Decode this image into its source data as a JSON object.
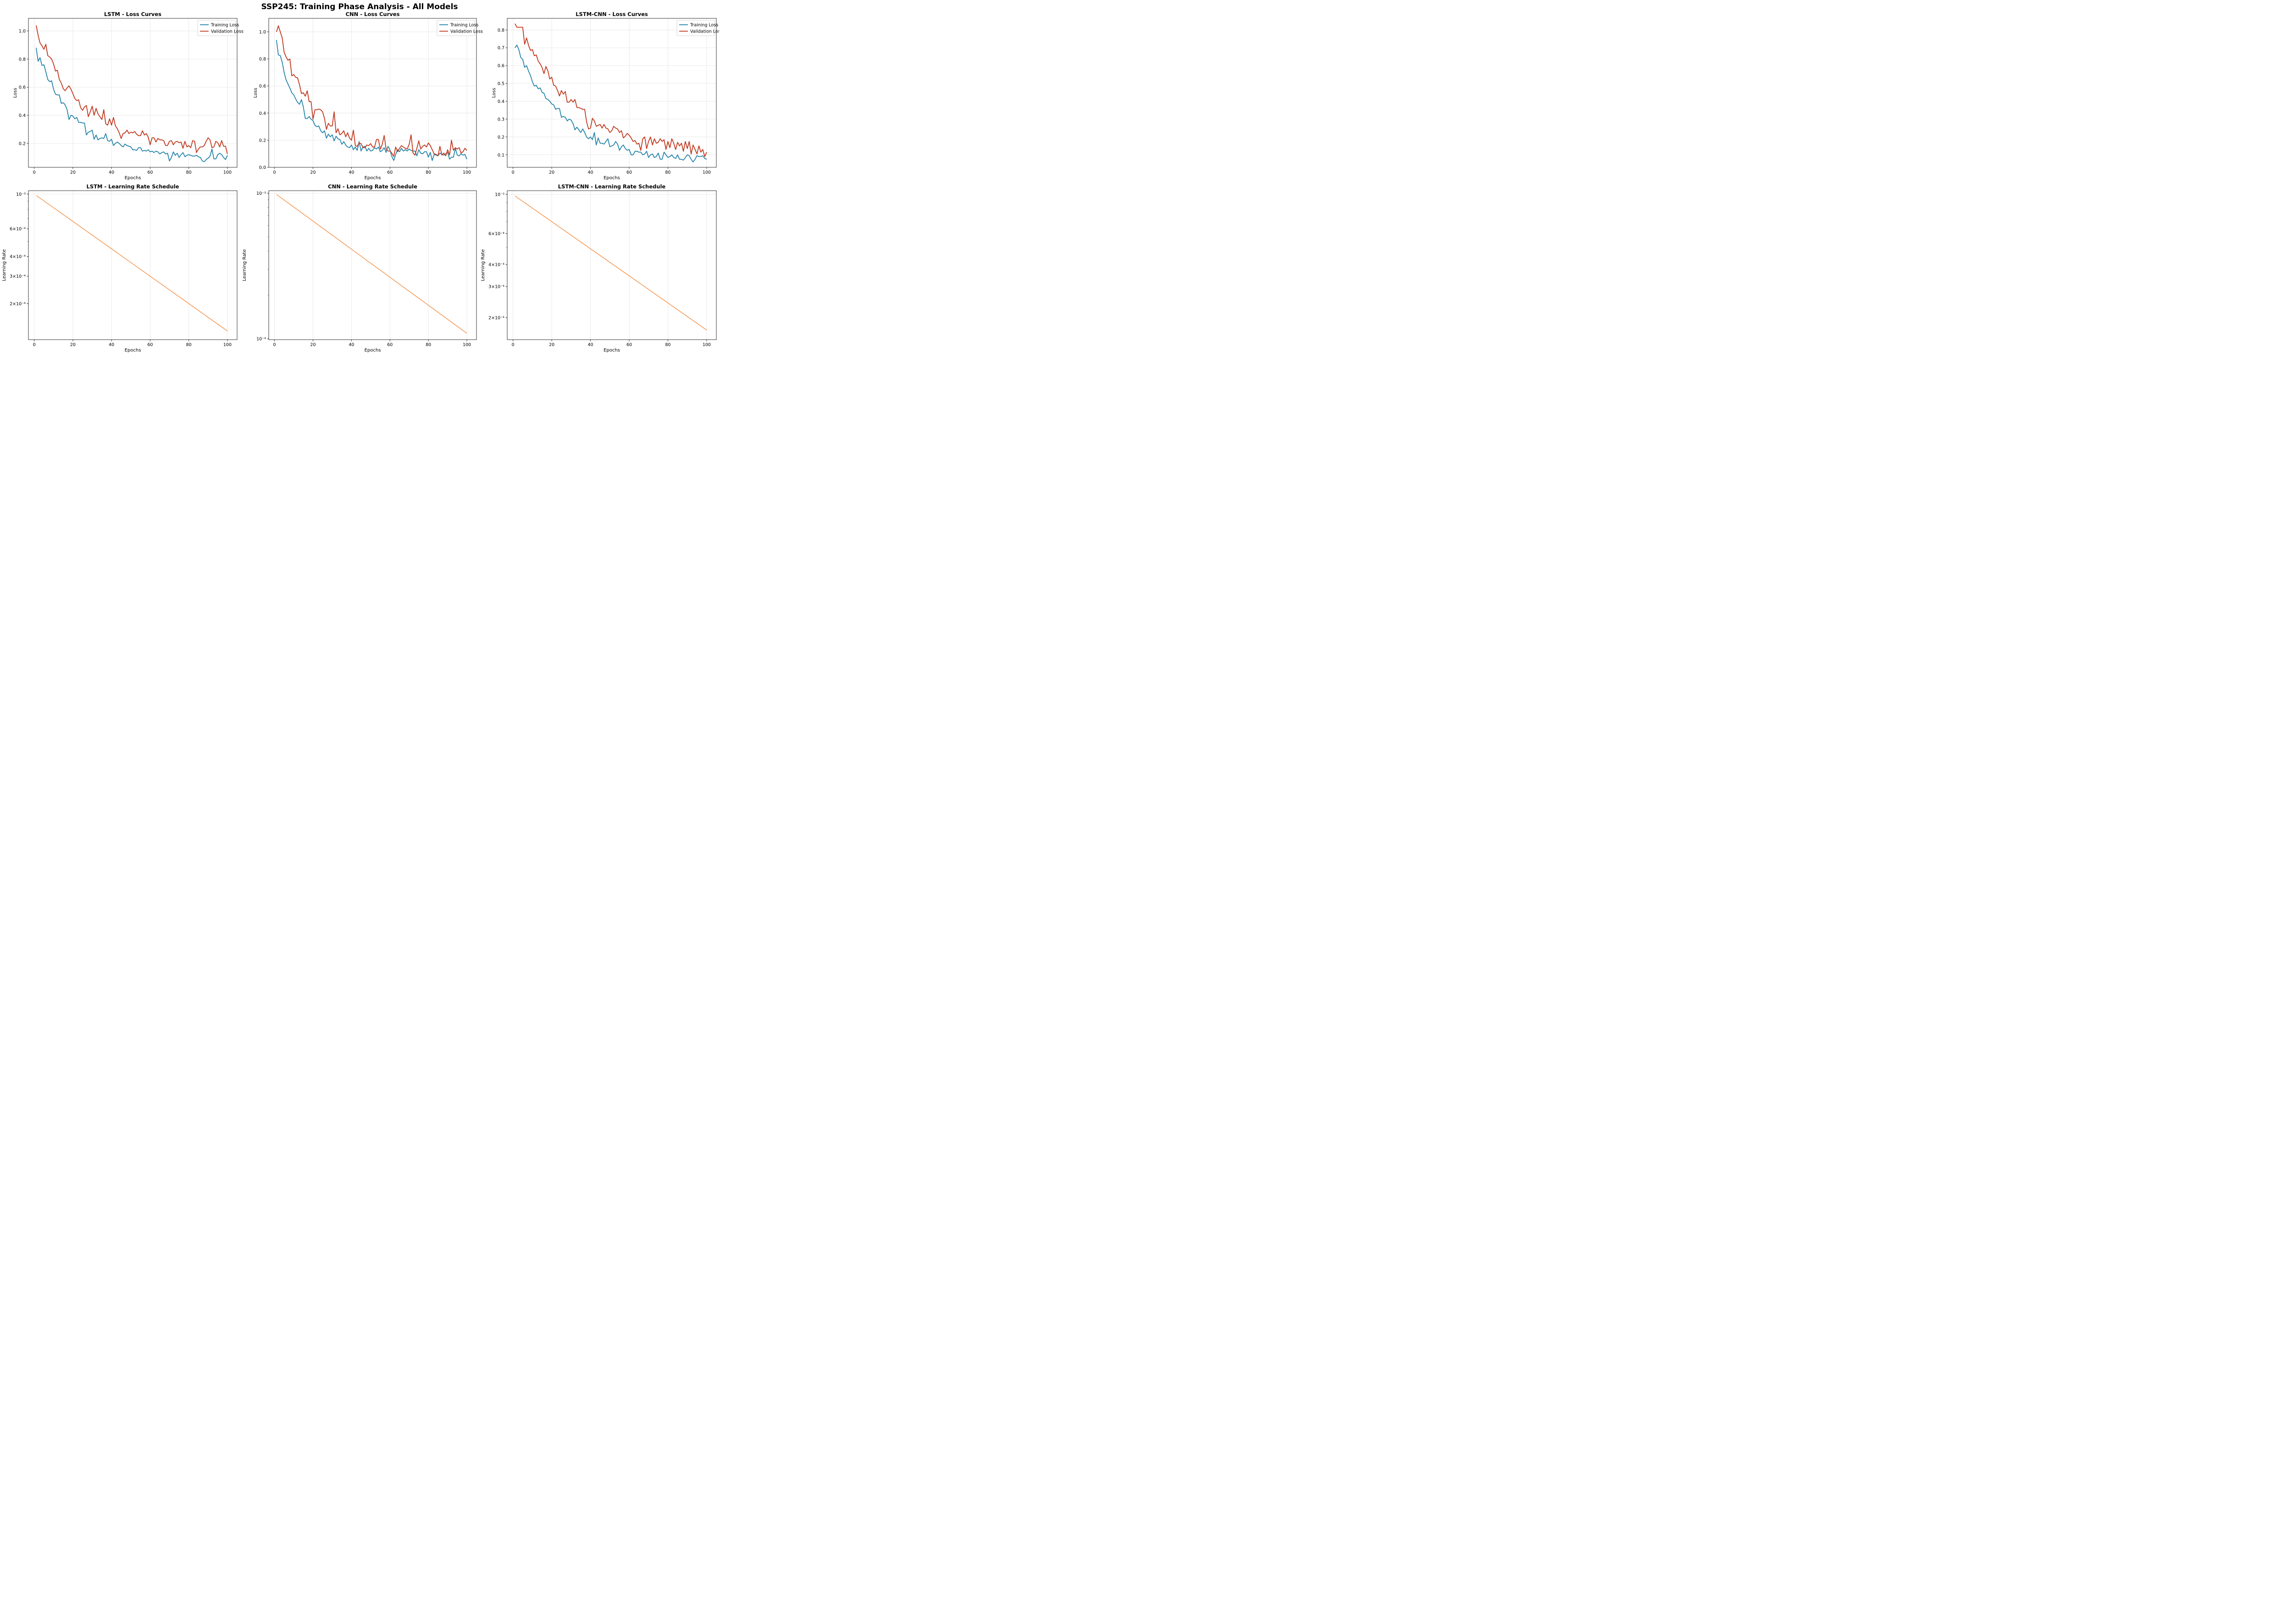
{
  "title": "SSP245: Training Phase Analysis - All Models",
  "colors": {
    "training": "#2383a8",
    "validation": "#c0371c",
    "learning_rate": "#f5964f"
  },
  "chart_data": [
    {
      "type": "line",
      "title": "LSTM - Loss Curves",
      "xlabel": "Epochs",
      "ylabel": "Loss",
      "xlim": [
        -3,
        105
      ],
      "ylim": [
        0.03,
        1.09
      ],
      "xticks": [
        0,
        20,
        40,
        60,
        80,
        100
      ],
      "yticks": [
        0.2,
        0.4,
        0.6,
        0.8,
        1.0
      ],
      "ytick_labels": [
        "0.2",
        "0.4",
        "0.6",
        "0.8",
        "1.0"
      ],
      "grid": true,
      "legend": "top-right",
      "x_start": 1,
      "x_step": 1,
      "series": [
        {
          "name": "Training Loss",
          "color_key": "training",
          "values": [
            0.88,
            0.785,
            0.81,
            0.755,
            0.76,
            0.71,
            0.655,
            0.64,
            0.645,
            0.585,
            0.55,
            0.545,
            0.545,
            0.485,
            0.49,
            0.475,
            0.44,
            0.37,
            0.4,
            0.395,
            0.375,
            0.385,
            0.35,
            0.35,
            0.345,
            0.345,
            0.26,
            0.28,
            0.285,
            0.295,
            0.23,
            0.26,
            0.225,
            0.235,
            0.24,
            0.235,
            0.27,
            0.22,
            0.215,
            0.23,
            0.185,
            0.2,
            0.21,
            0.2,
            0.185,
            0.175,
            0.195,
            0.185,
            0.18,
            0.175,
            0.155,
            0.155,
            0.15,
            0.17,
            0.17,
            0.145,
            0.15,
            0.145,
            0.155,
            0.14,
            0.145,
            0.135,
            0.145,
            0.14,
            0.125,
            0.135,
            0.14,
            0.125,
            0.13,
            0.075,
            0.1,
            0.14,
            0.115,
            0.13,
            0.1,
            0.12,
            0.135,
            0.105,
            0.115,
            0.12,
            0.115,
            0.11,
            0.11,
            0.115,
            0.105,
            0.1,
            0.075,
            0.07,
            0.085,
            0.095,
            0.11,
            0.16,
            0.09,
            0.09,
            0.12,
            0.13,
            0.12,
            0.1,
            0.085,
            0.115
          ]
        },
        {
          "name": "Validation Loss",
          "color_key": "validation",
          "values": [
            1.04,
            0.97,
            0.915,
            0.895,
            0.87,
            0.905,
            0.825,
            0.815,
            0.8,
            0.765,
            0.715,
            0.72,
            0.655,
            0.63,
            0.59,
            0.575,
            0.595,
            0.61,
            0.585,
            0.555,
            0.52,
            0.505,
            0.51,
            0.455,
            0.435,
            0.46,
            0.47,
            0.39,
            0.425,
            0.465,
            0.4,
            0.45,
            0.41,
            0.39,
            0.37,
            0.44,
            0.34,
            0.33,
            0.375,
            0.33,
            0.385,
            0.325,
            0.305,
            0.275,
            0.235,
            0.27,
            0.275,
            0.295,
            0.27,
            0.28,
            0.275,
            0.285,
            0.265,
            0.255,
            0.255,
            0.29,
            0.26,
            0.27,
            0.245,
            0.19,
            0.24,
            0.24,
            0.21,
            0.235,
            0.225,
            0.225,
            0.22,
            0.185,
            0.185,
            0.215,
            0.22,
            0.19,
            0.21,
            0.215,
            0.205,
            0.21,
            0.165,
            0.215,
            0.175,
            0.185,
            0.17,
            0.22,
            0.215,
            0.135,
            0.16,
            0.175,
            0.175,
            0.185,
            0.215,
            0.24,
            0.225,
            0.17,
            0.175,
            0.215,
            0.205,
            0.175,
            0.22,
            0.18,
            0.18,
            0.125
          ]
        }
      ]
    },
    {
      "type": "line",
      "title": "CNN - Loss Curves",
      "xlabel": "Epochs",
      "ylabel": "Loss",
      "xlim": [
        -3,
        105
      ],
      "ylim": [
        0.0,
        1.1
      ],
      "xticks": [
        0,
        20,
        40,
        60,
        80,
        100
      ],
      "yticks": [
        0.0,
        0.2,
        0.4,
        0.6,
        0.8,
        1.0
      ],
      "ytick_labels": [
        "0.0",
        "0.2",
        "0.4",
        "0.6",
        "0.8",
        "1.0"
      ],
      "grid": true,
      "legend": "top-right",
      "x_start": 1,
      "x_step": 1,
      "series": [
        {
          "name": "Training Loss",
          "color_key": "training",
          "values": [
            0.94,
            0.83,
            0.825,
            0.775,
            0.7,
            0.645,
            0.615,
            0.585,
            0.55,
            0.535,
            0.505,
            0.48,
            0.465,
            0.5,
            0.445,
            0.36,
            0.36,
            0.375,
            0.355,
            0.345,
            0.31,
            0.3,
            0.305,
            0.27,
            0.255,
            0.27,
            0.215,
            0.245,
            0.225,
            0.24,
            0.195,
            0.23,
            0.21,
            0.205,
            0.17,
            0.19,
            0.165,
            0.15,
            0.145,
            0.165,
            0.13,
            0.15,
            0.125,
            0.19,
            0.12,
            0.15,
            0.155,
            0.12,
            0.14,
            0.12,
            0.125,
            0.145,
            0.135,
            0.15,
            0.115,
            0.125,
            0.145,
            0.11,
            0.155,
            0.13,
            0.08,
            0.05,
            0.095,
            0.13,
            0.115,
            0.14,
            0.12,
            0.13,
            0.12,
            0.135,
            0.125,
            0.12,
            0.12,
            0.085,
            0.13,
            0.105,
            0.1,
            0.115,
            0.115,
            0.075,
            0.11,
            0.05,
            0.095,
            0.09,
            0.085,
            0.105,
            0.095,
            0.09,
            0.1,
            0.11,
            0.06,
            0.075,
            0.075,
            0.14,
            0.09,
            0.085,
            0.1,
            0.09,
            0.095,
            0.06
          ]
        },
        {
          "name": "Validation Loss",
          "color_key": "validation",
          "values": [
            1.0,
            1.045,
            1.0,
            0.955,
            0.85,
            0.815,
            0.79,
            0.8,
            0.675,
            0.685,
            0.665,
            0.66,
            0.61,
            0.545,
            0.55,
            0.525,
            0.565,
            0.485,
            0.485,
            0.355,
            0.425,
            0.425,
            0.43,
            0.425,
            0.41,
            0.36,
            0.28,
            0.325,
            0.305,
            0.305,
            0.41,
            0.255,
            0.285,
            0.24,
            0.25,
            0.27,
            0.225,
            0.255,
            0.215,
            0.2,
            0.275,
            0.16,
            0.155,
            0.18,
            0.175,
            0.145,
            0.145,
            0.165,
            0.16,
            0.175,
            0.15,
            0.15,
            0.205,
            0.205,
            0.135,
            0.17,
            0.235,
            0.135,
            0.12,
            0.12,
            0.105,
            0.08,
            0.15,
            0.115,
            0.14,
            0.16,
            0.15,
            0.14,
            0.135,
            0.17,
            0.24,
            0.105,
            0.09,
            0.14,
            0.195,
            0.135,
            0.155,
            0.165,
            0.15,
            0.18,
            0.16,
            0.13,
            0.1,
            0.095,
            0.085,
            0.155,
            0.09,
            0.105,
            0.085,
            0.13,
            0.09,
            0.2,
            0.125,
            0.145,
            0.135,
            0.145,
            0.105,
            0.115,
            0.14,
            0.125
          ]
        }
      ]
    },
    {
      "type": "line",
      "title": "LSTM-CNN - Loss Curves",
      "xlabel": "Epochs",
      "ylabel": "Loss",
      "xlim": [
        -3,
        105
      ],
      "ylim": [
        0.03,
        0.865
      ],
      "xticks": [
        0,
        20,
        40,
        60,
        80,
        100
      ],
      "yticks": [
        0.1,
        0.2,
        0.3,
        0.4,
        0.5,
        0.6,
        0.7,
        0.8
      ],
      "ytick_labels": [
        "0.1",
        "0.2",
        "0.3",
        "0.4",
        "0.5",
        "0.6",
        "0.7",
        "0.8"
      ],
      "grid": true,
      "legend": "top-right",
      "x_start": 1,
      "x_step": 1,
      "series": [
        {
          "name": "Training Loss",
          "color_key": "training",
          "values": [
            0.7,
            0.715,
            0.69,
            0.645,
            0.635,
            0.59,
            0.6,
            0.57,
            0.545,
            0.51,
            0.485,
            0.49,
            0.47,
            0.475,
            0.45,
            0.445,
            0.415,
            0.41,
            0.4,
            0.385,
            0.38,
            0.355,
            0.36,
            0.36,
            0.31,
            0.315,
            0.31,
            0.29,
            0.3,
            0.295,
            0.275,
            0.24,
            0.255,
            0.24,
            0.225,
            0.245,
            0.225,
            0.2,
            0.19,
            0.2,
            0.185,
            0.225,
            0.155,
            0.195,
            0.165,
            0.165,
            0.16,
            0.175,
            0.19,
            0.145,
            0.15,
            0.155,
            0.175,
            0.16,
            0.125,
            0.145,
            0.155,
            0.135,
            0.125,
            0.13,
            0.1,
            0.1,
            0.12,
            0.12,
            0.115,
            0.115,
            0.1,
            0.105,
            0.12,
            0.085,
            0.1,
            0.105,
            0.085,
            0.09,
            0.11,
            0.075,
            0.075,
            0.115,
            0.1,
            0.085,
            0.09,
            0.1,
            0.085,
            0.08,
            0.1,
            0.075,
            0.075,
            0.07,
            0.085,
            0.1,
            0.095,
            0.075,
            0.06,
            0.075,
            0.095,
            0.09,
            0.09,
            0.095,
            0.08,
            0.075
          ]
        },
        {
          "name": "Validation Loss",
          "color_key": "validation",
          "values": [
            0.835,
            0.815,
            0.815,
            0.815,
            0.815,
            0.72,
            0.755,
            0.715,
            0.685,
            0.69,
            0.655,
            0.66,
            0.625,
            0.61,
            0.59,
            0.555,
            0.595,
            0.57,
            0.525,
            0.535,
            0.49,
            0.485,
            0.46,
            0.43,
            0.46,
            0.44,
            0.455,
            0.395,
            0.395,
            0.41,
            0.395,
            0.41,
            0.365,
            0.365,
            0.36,
            0.355,
            0.355,
            0.285,
            0.245,
            0.25,
            0.305,
            0.29,
            0.26,
            0.265,
            0.27,
            0.25,
            0.27,
            0.25,
            0.245,
            0.225,
            0.235,
            0.26,
            0.25,
            0.245,
            0.225,
            0.235,
            0.195,
            0.205,
            0.22,
            0.21,
            0.195,
            0.175,
            0.18,
            0.16,
            0.165,
            0.125,
            0.19,
            0.2,
            0.135,
            0.175,
            0.2,
            0.155,
            0.19,
            0.165,
            0.17,
            0.19,
            0.175,
            0.185,
            0.13,
            0.175,
            0.14,
            0.19,
            0.165,
            0.13,
            0.17,
            0.15,
            0.165,
            0.12,
            0.175,
            0.135,
            0.175,
            0.105,
            0.155,
            0.13,
            0.105,
            0.15,
            0.115,
            0.13,
            0.09,
            0.115
          ]
        }
      ]
    },
    {
      "type": "line",
      "title": "LSTM - Learning Rate Schedule",
      "xlabel": "Epochs",
      "ylabel": "Learning Rate",
      "yscale": "log",
      "xlim": [
        -3,
        105
      ],
      "ylim": [
        0.000118,
        0.00105
      ],
      "xticks": [
        0,
        20,
        40,
        60,
        80,
        100
      ],
      "yticks": [
        0.0002,
        0.0003,
        0.0004,
        0.0006,
        0.001
      ],
      "ytick_labels": [
        "2×10⁻⁴",
        "3×10⁻⁴",
        "4×10⁻⁴",
        "6×10⁻⁴",
        "10⁻³"
      ],
      "grid": true,
      "series": [
        {
          "name": "",
          "color_key": "learning_rate",
          "x": [
            1,
            100
          ],
          "values": [
            0.00098,
            0.000134
          ]
        }
      ]
    },
    {
      "type": "line",
      "title": "CNN - Learning Rate Schedule",
      "xlabel": "Epochs",
      "ylabel": "Learning Rate",
      "yscale": "log",
      "xlim": [
        -3,
        105
      ],
      "ylim": [
        9.86e-05,
        0.00104
      ],
      "xticks": [
        0,
        20,
        40,
        60,
        80,
        100
      ],
      "yticks": [
        0.0001,
        0.001
      ],
      "ytick_labels": [
        "10⁻⁴",
        "10⁻³"
      ],
      "grid": true,
      "series": [
        {
          "name": "",
          "color_key": "learning_rate",
          "x": [
            1,
            100
          ],
          "values": [
            0.00098,
            0.000109
          ]
        }
      ]
    },
    {
      "type": "line",
      "title": "LSTM-CNN - Learning Rate Schedule",
      "xlabel": "Epochs",
      "ylabel": "Learning Rate",
      "yscale": "log",
      "xlim": [
        -3,
        105
      ],
      "ylim": [
        0.00015,
        0.00105
      ],
      "xticks": [
        0,
        20,
        40,
        60,
        80,
        100
      ],
      "yticks": [
        0.0002,
        0.0003,
        0.0004,
        0.0006,
        0.001
      ],
      "ytick_labels": [
        "2×10⁻⁴",
        "3×10⁻⁴",
        "4×10⁻⁴",
        "6×10⁻⁴",
        "10⁻³"
      ],
      "grid": true,
      "series": [
        {
          "name": "",
          "color_key": "learning_rate",
          "x": [
            1,
            100
          ],
          "values": [
            0.00098,
            0.00017
          ]
        }
      ]
    }
  ]
}
